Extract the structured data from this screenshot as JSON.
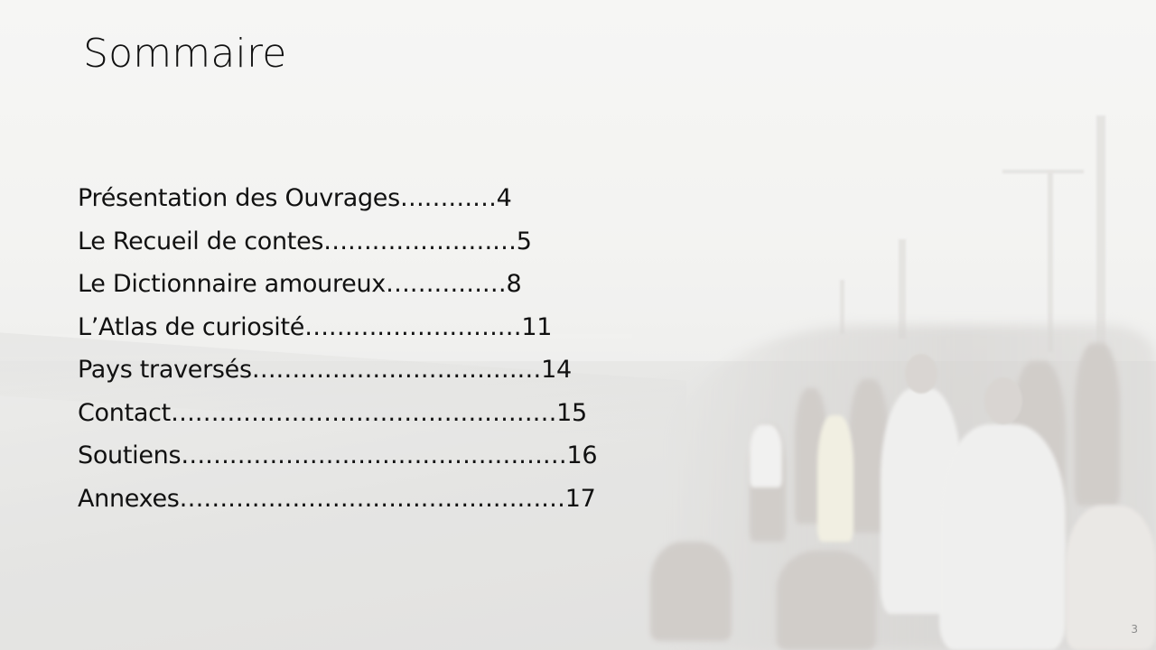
{
  "slide": {
    "title": "Sommaire",
    "number": "3",
    "toc": [
      {
        "text": "Présentation des Ouvrages…………4"
      },
      {
        "text": "Le Recueil de contes……………………5"
      },
      {
        "text": "Le Dictionnaire amoureux……………8"
      },
      {
        "text": "L’Atlas de curiosité………………………11"
      },
      {
        "text": "Pays traversés………………………………14"
      },
      {
        "text": "Contact…………………………………………15"
      },
      {
        "text": "Soutiens…………………………………………16"
      },
      {
        "text": "Annexes…………………………………………17"
      }
    ]
  },
  "background": {
    "description_icon": "beach-crowd-photo",
    "tint": "#f3f3f2"
  }
}
